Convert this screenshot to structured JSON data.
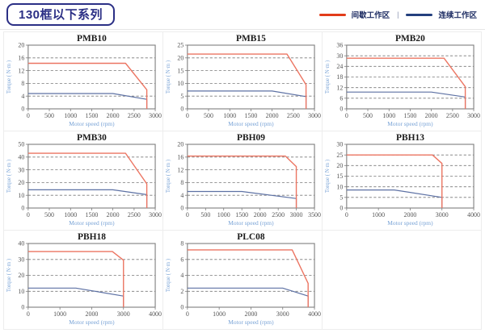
{
  "header": {
    "title": "130框以下系列",
    "legend": {
      "intermittent_label": "间歇工作区",
      "separator": "|",
      "continuous_label": "连续工作区"
    }
  },
  "colors": {
    "brand_navy": "#2b2f85",
    "legend_text": "#1e2d63",
    "intermittent_swatch": "#e23c1a",
    "continuous_swatch": "#24407e",
    "intermittent_line": "#ec7562",
    "continuous_line": "#5d71a4",
    "plot_border": "#7d7d7d",
    "grid_line": "#787878",
    "tick_text": "#555555",
    "axis_label_text": "#79a3d6",
    "cell_border": "#ededed"
  },
  "chart_data": [
    {
      "type": "line",
      "title": "PMB10",
      "xlabel": "Motor speed (rpm)",
      "ylabel": "Torque ( N·m )",
      "xlim": [
        0,
        3000
      ],
      "xtick_step": 500,
      "ylim": [
        0,
        20
      ],
      "ytick_step": 4,
      "grid": "dashed-horizontal",
      "legend_position": "none",
      "series": [
        {
          "name": "间歇工作区",
          "zone": "intermittent",
          "points": [
            [
              0,
              14.3
            ],
            [
              2300,
              14.3
            ],
            [
              2800,
              6
            ],
            [
              2800,
              0
            ]
          ]
        },
        {
          "name": "连续工作区",
          "zone": "continuous",
          "points": [
            [
              0,
              4.8
            ],
            [
              2000,
              4.8
            ],
            [
              2800,
              3
            ],
            [
              2800,
              0
            ]
          ]
        }
      ]
    },
    {
      "type": "line",
      "title": "PMB15",
      "xlabel": "Motor speed (rpm)",
      "ylabel": "Torque ( N·m )",
      "xlim": [
        0,
        3000
      ],
      "xtick_step": 500,
      "ylim": [
        0,
        25
      ],
      "ytick_step": 5,
      "grid": "dashed-horizontal",
      "legend_position": "none",
      "series": [
        {
          "name": "间歇工作区",
          "zone": "intermittent",
          "points": [
            [
              0,
              21.5
            ],
            [
              2350,
              21.5
            ],
            [
              2800,
              9.5
            ],
            [
              2800,
              0
            ]
          ]
        },
        {
          "name": "连续工作区",
          "zone": "continuous",
          "points": [
            [
              0,
              7
            ],
            [
              2000,
              7
            ],
            [
              2800,
              4.8
            ],
            [
              2800,
              0
            ]
          ]
        }
      ]
    },
    {
      "type": "line",
      "title": "PMB20",
      "xlabel": "Motor speed (rpm)",
      "ylabel": "Torque ( N·m )",
      "xlim": [
        0,
        3000
      ],
      "xtick_step": 500,
      "ylim": [
        0,
        36
      ],
      "ytick_step": 6,
      "grid": "dashed-horizontal",
      "legend_position": "none",
      "series": [
        {
          "name": "间歇工作区",
          "zone": "intermittent",
          "points": [
            [
              0,
              28.6
            ],
            [
              2300,
              28.6
            ],
            [
              2800,
              12.5
            ],
            [
              2800,
              0
            ]
          ]
        },
        {
          "name": "连续工作区",
          "zone": "continuous",
          "points": [
            [
              0,
              9.5
            ],
            [
              2000,
              9.5
            ],
            [
              2800,
              6.7
            ],
            [
              2800,
              0
            ]
          ]
        }
      ]
    },
    {
      "type": "line",
      "title": "PMB30",
      "xlabel": "Motor speed (rpm)",
      "ylabel": "Torque ( N·m )",
      "xlim": [
        0,
        3000
      ],
      "xtick_step": 500,
      "ylim": [
        0,
        50
      ],
      "ytick_step": 10,
      "grid": "dashed-horizontal",
      "legend_position": "none",
      "series": [
        {
          "name": "间歇工作区",
          "zone": "intermittent",
          "points": [
            [
              0,
              43
            ],
            [
              2300,
              43
            ],
            [
              2800,
              19
            ],
            [
              2800,
              0
            ]
          ]
        },
        {
          "name": "连续工作区",
          "zone": "continuous",
          "points": [
            [
              0,
              14.3
            ],
            [
              2000,
              14.3
            ],
            [
              2800,
              10.5
            ],
            [
              2800,
              0
            ]
          ]
        }
      ]
    },
    {
      "type": "line",
      "title": "PBH09",
      "xlabel": "Motor speed (rpm)",
      "ylabel": "Torque ( N·m )",
      "xlim": [
        0,
        3500
      ],
      "xtick_step": 500,
      "ylim": [
        0,
        20
      ],
      "ytick_step": 4,
      "grid": "dashed-horizontal",
      "legend_position": "none",
      "series": [
        {
          "name": "间歇工作区",
          "zone": "intermittent",
          "points": [
            [
              0,
              16.3
            ],
            [
              2700,
              16.3
            ],
            [
              3000,
              13
            ],
            [
              3000,
              0
            ]
          ]
        },
        {
          "name": "连续工作区",
          "zone": "continuous",
          "points": [
            [
              0,
              5.2
            ],
            [
              1500,
              5.2
            ],
            [
              3000,
              3
            ],
            [
              3000,
              0
            ]
          ]
        }
      ]
    },
    {
      "type": "line",
      "title": "PBH13",
      "xlabel": "Motor speed (rpm)",
      "ylabel": "Torque ( N·m )",
      "xlim": [
        0,
        4000
      ],
      "xtick_step": 1000,
      "ylim": [
        0,
        30
      ],
      "ytick_step": 5,
      "grid": "dashed-horizontal",
      "legend_position": "none",
      "series": [
        {
          "name": "间歇工作区",
          "zone": "intermittent",
          "points": [
            [
              0,
              25
            ],
            [
              2700,
              25
            ],
            [
              3000,
              21
            ],
            [
              3000,
              0
            ]
          ]
        },
        {
          "name": "连续工作区",
          "zone": "continuous",
          "points": [
            [
              0,
              8.5
            ],
            [
              1500,
              8.5
            ],
            [
              3000,
              5
            ],
            [
              3000,
              0
            ]
          ]
        }
      ]
    },
    {
      "type": "line",
      "title": "PBH18",
      "xlabel": "Motor speed (rpm)",
      "ylabel": "Torque ( N·m )",
      "xlim": [
        0,
        4000
      ],
      "xtick_step": 1000,
      "ylim": [
        0,
        40
      ],
      "ytick_step": 10,
      "grid": "dashed-horizontal",
      "legend_position": "none",
      "series": [
        {
          "name": "间歇工作区",
          "zone": "intermittent",
          "points": [
            [
              0,
              35
            ],
            [
              2650,
              35
            ],
            [
              3000,
              29.5
            ],
            [
              3000,
              0
            ]
          ]
        },
        {
          "name": "连续工作区",
          "zone": "continuous",
          "points": [
            [
              0,
              12
            ],
            [
              1500,
              12
            ],
            [
              3000,
              7
            ],
            [
              3000,
              0
            ]
          ]
        }
      ]
    },
    {
      "type": "line",
      "title": "PLC08",
      "xlabel": "Motor speed (rpm)",
      "ylabel": "Torque ( N·m )",
      "xlim": [
        0,
        4000
      ],
      "xtick_step": 1000,
      "ylim": [
        0,
        8
      ],
      "ytick_step": 2,
      "grid": "dashed-horizontal",
      "legend_position": "none",
      "series": [
        {
          "name": "间歇工作区",
          "zone": "intermittent",
          "points": [
            [
              0,
              7.2
            ],
            [
              3300,
              7.2
            ],
            [
              3800,
              3
            ],
            [
              3800,
              0
            ]
          ]
        },
        {
          "name": "连续工作区",
          "zone": "continuous",
          "points": [
            [
              0,
              2.4
            ],
            [
              3000,
              2.4
            ],
            [
              3800,
              1.4
            ],
            [
              3800,
              0
            ]
          ]
        }
      ]
    }
  ]
}
